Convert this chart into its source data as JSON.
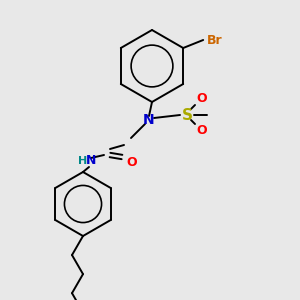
{
  "bg_color": "#e8e8e8",
  "bond_color": "#000000",
  "atom_colors": {
    "N": "#0000cc",
    "O": "#ff0000",
    "S": "#aaaa00",
    "Br": "#cc6600",
    "H": "#008888",
    "C": "#000000"
  },
  "figsize": [
    3.0,
    3.0
  ],
  "dpi": 100,
  "lw": 1.4
}
